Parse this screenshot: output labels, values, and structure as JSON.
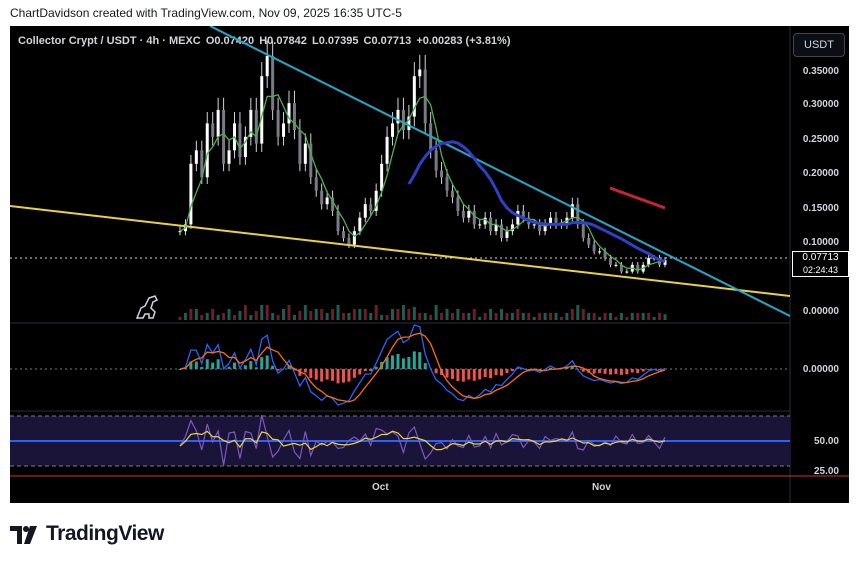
{
  "header": {
    "credit": "ChartDavidson created with TradingView.com, Nov 09, 2025 16:35 UTC-5"
  },
  "symbol": {
    "title": "Collector Crypt / USDT · 4h · MEXC",
    "open": "O0.07420",
    "high": "H0.07842",
    "low": "L0.07395",
    "close": "C0.07713",
    "change": "+0.00283 (+3.81%)"
  },
  "currency_button": "USDT",
  "price_axis": {
    "ticks": [
      "0.35000",
      "0.30000",
      "0.25000",
      "0.20000",
      "0.15000",
      "0.10000",
      "0.00000"
    ],
    "current_price": "0.07713",
    "countdown": "02:24:43"
  },
  "macd_axis": {
    "ticks": [
      "0.00000"
    ]
  },
  "rsi_axis": {
    "ticks": [
      "50.00",
      "25.00"
    ]
  },
  "time_axis": {
    "ticks": [
      "Oct",
      "Nov"
    ]
  },
  "brand": {
    "name": "TradingView"
  },
  "colors": {
    "background": "#000000",
    "teal_trendline": "#21a9c9",
    "yellow_trendline": "#e8d33f",
    "blue_ma": "#2e3fc8",
    "red_ma": "#c8223a",
    "green_ma": "#4caf50",
    "candle": "#d1d4dc",
    "macd_line": "#2962ff",
    "signal_line": "#ff6d00",
    "rsi_line": "#7e57c2",
    "rsi_ma": "#e8d33f"
  },
  "chart_data": {
    "type": "line",
    "series": [
      {
        "values": [
          0.12,
          0.13,
          0.22,
          0.24,
          0.2,
          0.28,
          0.26,
          0.3,
          0.22,
          0.24,
          0.28,
          0.23,
          0.26,
          0.3,
          0.25,
          0.35,
          0.38,
          0.3,
          0.26,
          0.28,
          0.31,
          0.27,
          0.22,
          0.25,
          0.2,
          0.18,
          0.16,
          0.17,
          0.15,
          0.12,
          0.11,
          0.1,
          0.12,
          0.14,
          0.16,
          0.15,
          0.18,
          0.22,
          0.26,
          0.28,
          0.3,
          0.27,
          0.29,
          0.35,
          0.36,
          0.28,
          0.24,
          0.21,
          0.2,
          0.18,
          0.17,
          0.15,
          0.14,
          0.15,
          0.13,
          0.13,
          0.14,
          0.12,
          0.13,
          0.11,
          0.12,
          0.13,
          0.15,
          0.14,
          0.13,
          0.13,
          0.12,
          0.13,
          0.14,
          0.13,
          0.13,
          0.14,
          0.16,
          0.13,
          0.11,
          0.1,
          0.09,
          0.09,
          0.08,
          0.07,
          0.07,
          0.06,
          0.06,
          0.07,
          0.06,
          0.07,
          0.08,
          0.08,
          0.07,
          0.077
        ]
      }
    ],
    "ylim": [
      0,
      0.38
    ]
  }
}
